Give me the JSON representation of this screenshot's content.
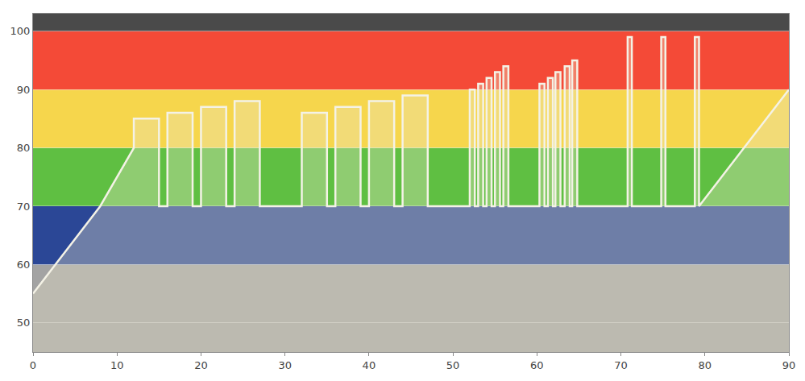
{
  "chart_data": {
    "type": "area",
    "x": [
      0,
      8,
      12,
      12,
      15,
      15,
      16,
      16,
      19,
      19,
      20,
      20,
      23,
      23,
      24,
      24,
      27,
      27,
      32,
      32,
      35,
      35,
      36,
      36,
      39,
      39,
      40,
      40,
      43,
      43,
      44,
      44,
      47,
      47,
      52,
      52,
      52.6,
      52.6,
      53,
      53,
      53.6,
      53.6,
      54,
      54,
      54.6,
      54.6,
      55,
      55,
      55.6,
      55.6,
      56,
      56,
      56.6,
      56.6,
      60.3,
      60.3,
      60.9,
      60.9,
      61.3,
      61.3,
      61.9,
      61.9,
      62.2,
      62.2,
      62.8,
      62.8,
      63.3,
      63.3,
      63.9,
      63.9,
      64.2,
      64.2,
      64.8,
      64.8,
      70.8,
      70.8,
      71.3,
      71.3,
      74.8,
      74.8,
      75.3,
      75.3,
      78.8,
      78.8,
      79.3,
      79.3,
      90
    ],
    "values": [
      55,
      70,
      80,
      85,
      85,
      70,
      70,
      86,
      86,
      70,
      70,
      87,
      87,
      70,
      70,
      88,
      88,
      70,
      70,
      86,
      86,
      70,
      70,
      87,
      87,
      70,
      70,
      88,
      88,
      70,
      70,
      89,
      89,
      70,
      70,
      90,
      90,
      70,
      70,
      91,
      91,
      70,
      70,
      92,
      92,
      70,
      70,
      93,
      93,
      70,
      70,
      94,
      94,
      70,
      70,
      91,
      91,
      70,
      70,
      92,
      92,
      70,
      70,
      93,
      93,
      70,
      70,
      94,
      94,
      70,
      70,
      95,
      95,
      70,
      70,
      99,
      99,
      70,
      70,
      99,
      99,
      70,
      70,
      99,
      99,
      70,
      90
    ],
    "color": "#f4f2e6",
    "zones": [
      {
        "from": 45,
        "to": 60,
        "color": "#a3a3a3"
      },
      {
        "from": 60,
        "to": 70,
        "color": "#2b4796"
      },
      {
        "from": 70,
        "to": 80,
        "color": "#5fbf42"
      },
      {
        "from": 80,
        "to": 90,
        "color": "#f6d64c"
      },
      {
        "from": 90,
        "to": 100,
        "color": "#f44a37"
      },
      {
        "from": 100,
        "to": 103,
        "color": "#4a4a4a"
      }
    ],
    "xlim": [
      0,
      90
    ],
    "xticks": [
      0,
      10,
      20,
      30,
      40,
      50,
      60,
      70,
      80,
      90
    ],
    "ylim": [
      45,
      103
    ],
    "yticks": [
      50,
      60,
      70,
      80,
      90,
      100
    ],
    "grid": true
  }
}
